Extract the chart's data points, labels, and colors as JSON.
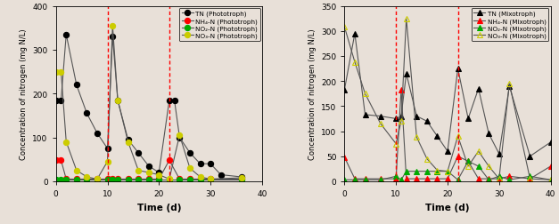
{
  "left": {
    "ylabel": "Concentration of nitrogen (mg N/L)",
    "xlabel": "Time (d)",
    "ylim": [
      0,
      400
    ],
    "xlim": [
      0,
      40
    ],
    "yticks": [
      0,
      100,
      200,
      300,
      400
    ],
    "xticks": [
      0,
      10,
      20,
      30,
      40
    ],
    "vlines": [
      10,
      22
    ],
    "series": {
      "TN": {
        "x": [
          0,
          1,
          2,
          4,
          6,
          8,
          10,
          11,
          12,
          14,
          16,
          18,
          20,
          22,
          23,
          24,
          26,
          28,
          30,
          32,
          36
        ],
        "y": [
          185,
          185,
          335,
          220,
          155,
          110,
          75,
          330,
          185,
          95,
          65,
          35,
          20,
          185,
          185,
          100,
          65,
          40,
          40,
          15,
          10
        ],
        "color": "black",
        "marker": "o",
        "mfc": "black",
        "label": "TN (Phototroph)"
      },
      "NH4": {
        "x": [
          0,
          1,
          2,
          4,
          6,
          8,
          10,
          11,
          12,
          14,
          16,
          18,
          20,
          22,
          24,
          26,
          28,
          30,
          36
        ],
        "y": [
          48,
          48,
          5,
          5,
          5,
          5,
          5,
          5,
          5,
          5,
          5,
          5,
          5,
          48,
          5,
          5,
          5,
          5,
          5
        ],
        "color": "red",
        "marker": "o",
        "mfc": "red",
        "label": "NH₄-N (Phototroph)"
      },
      "NO2": {
        "x": [
          0,
          1,
          2,
          4,
          6,
          8,
          10,
          11,
          12,
          14,
          16,
          18,
          20,
          22,
          24,
          26,
          28,
          30,
          36
        ],
        "y": [
          3,
          3,
          3,
          3,
          3,
          3,
          3,
          3,
          3,
          3,
          3,
          3,
          3,
          3,
          3,
          3,
          3,
          3,
          3
        ],
        "color": "#00aa00",
        "marker": "o",
        "mfc": "#00aa00",
        "label": "NO₂-N (Phototroph)"
      },
      "NO3": {
        "x": [
          0,
          1,
          2,
          4,
          6,
          8,
          10,
          11,
          12,
          14,
          16,
          18,
          20,
          22,
          24,
          26,
          28,
          30,
          36
        ],
        "y": [
          250,
          250,
          90,
          25,
          10,
          5,
          45,
          355,
          185,
          90,
          25,
          20,
          15,
          5,
          105,
          30,
          10,
          5,
          8
        ],
        "color": "#cccc00",
        "marker": "o",
        "mfc": "#cccc00",
        "label": "NO₃-N (Phototroph)"
      }
    }
  },
  "right": {
    "ylabel": "Concentration of nitrogen (mg N/L)",
    "xlabel": "Time (d)",
    "ylim": [
      0,
      350
    ],
    "xlim": [
      0,
      40
    ],
    "yticks": [
      0,
      50,
      100,
      150,
      200,
      250,
      300,
      350
    ],
    "xticks": [
      0,
      10,
      20,
      30,
      40
    ],
    "vlines": [
      10,
      22
    ],
    "series": {
      "TN": {
        "x": [
          0,
          2,
          4,
          7,
          10,
          11,
          12,
          14,
          16,
          18,
          20,
          22,
          24,
          26,
          28,
          30,
          32,
          36,
          40
        ],
        "y": [
          183,
          295,
          133,
          130,
          125,
          130,
          215,
          130,
          120,
          90,
          60,
          225,
          125,
          185,
          95,
          55,
          190,
          50,
          78
        ],
        "color": "black",
        "marker": "^",
        "mfc": "black",
        "label": "TN (Mixotroph)"
      },
      "NH4": {
        "x": [
          0,
          2,
          4,
          7,
          10,
          11,
          12,
          14,
          16,
          18,
          20,
          22,
          24,
          26,
          28,
          30,
          32,
          36,
          40
        ],
        "y": [
          48,
          5,
          5,
          5,
          5,
          183,
          5,
          5,
          5,
          5,
          5,
          50,
          40,
          5,
          5,
          5,
          10,
          5,
          30
        ],
        "color": "red",
        "marker": "^",
        "mfc": "red",
        "label": "NH₄-N (Mixotroph)"
      },
      "NO2": {
        "x": [
          0,
          2,
          4,
          7,
          10,
          11,
          12,
          14,
          16,
          18,
          20,
          22,
          24,
          26,
          28,
          30,
          32,
          36,
          40
        ],
        "y": [
          3,
          3,
          3,
          3,
          10,
          3,
          20,
          20,
          20,
          20,
          20,
          3,
          40,
          30,
          3,
          10,
          3,
          10,
          3
        ],
        "color": "#00aa00",
        "marker": "^",
        "mfc": "#00aa00",
        "label": "NO₂-N (Mixotroph)"
      },
      "NO3": {
        "x": [
          0,
          2,
          4,
          7,
          10,
          11,
          12,
          14,
          16,
          18,
          20,
          22,
          24,
          26,
          28,
          30,
          32,
          36,
          40
        ],
        "y": [
          308,
          238,
          175,
          115,
          75,
          120,
          325,
          88,
          45,
          22,
          20,
          90,
          30,
          60,
          30,
          5,
          195,
          5,
          3
        ],
        "color": "#cccc00",
        "marker": "^",
        "mfc": "none",
        "label": "NO₃-N (Mixotroph)"
      }
    }
  }
}
